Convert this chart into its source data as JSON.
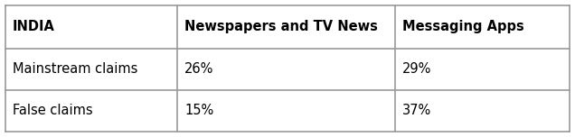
{
  "title_col": "INDIA",
  "col_headers": [
    "Newspapers and TV News",
    "Messaging Apps"
  ],
  "rows": [
    {
      "label": "Mainstream claims",
      "values": [
        "26%",
        "29%"
      ]
    },
    {
      "label": "False claims",
      "values": [
        "15%",
        "37%"
      ]
    }
  ],
  "header_fontsize": 10.5,
  "cell_fontsize": 10.5,
  "border_color": "#999999",
  "bg_color": "#ffffff",
  "text_color": "#000000",
  "fig_width": 6.36,
  "fig_height": 1.52,
  "dpi": 100
}
